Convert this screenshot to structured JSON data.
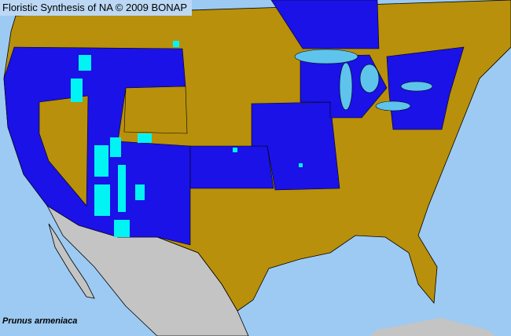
{
  "title": "Floristic Synthesis of NA © 2009 BONAP",
  "species": "Prunus armeniaca",
  "colors": {
    "ocean": "#9ccaf2",
    "absent_land": "#b8900c",
    "present": "#1a12e6",
    "present_highlight": "#00f4f4",
    "outside_region": "#c4c4c4",
    "lakes": "#5ec4ec",
    "borders": "#000000"
  }
}
